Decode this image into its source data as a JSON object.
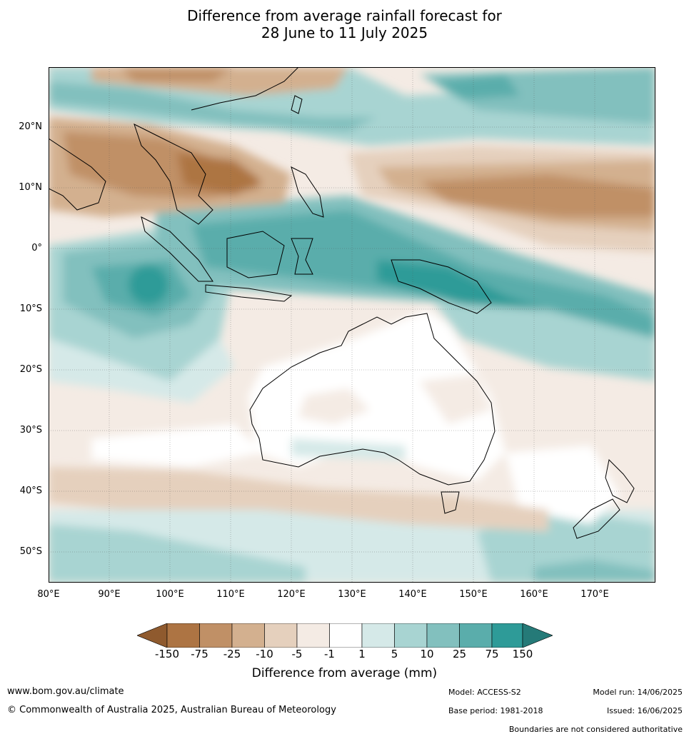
{
  "title": {
    "line1": "Difference from average rainfall forecast for",
    "line2": "28 June to 11 July 2025"
  },
  "map": {
    "lat_labels": [
      "20°N",
      "10°N",
      "0°",
      "10°S",
      "20°S",
      "30°S",
      "40°S",
      "50°S"
    ],
    "lon_labels": [
      "80°E",
      "90°E",
      "100°E",
      "110°E",
      "120°E",
      "130°E",
      "140°E",
      "150°E",
      "160°E",
      "170°E"
    ],
    "colors": {
      "dry_150": "#ad7443",
      "dry_75": "#c09066",
      "dry_25": "#d3b08f",
      "dry_10": "#e5d0bd",
      "dry_5": "#f4ebe4",
      "neutral": "#ffffff",
      "wet_5": "#d5e9e8",
      "wet_10": "#a8d4d2",
      "wet_25": "#82c0be",
      "wet_75": "#5aadab",
      "wet_150": "#2e9b98",
      "land_outline": "#000000",
      "border": "#808080"
    }
  },
  "colorbar": {
    "ticks": [
      "-150",
      "-75",
      "-25",
      "-10",
      "-5",
      "-1",
      "1",
      "5",
      "10",
      "25",
      "75",
      "150"
    ],
    "label": "Difference from average (mm)",
    "colors": [
      "#8f5a2e",
      "#ad7443",
      "#c09066",
      "#d3b08f",
      "#e5d0bd",
      "#f4ebe4",
      "#ffffff",
      "#d5e9e8",
      "#a8d4d2",
      "#82c0be",
      "#5aadab",
      "#2e9b98",
      "#257a78"
    ]
  },
  "footer": {
    "website": "www.bom.gov.au/climate",
    "copyright": "© Commonwealth of Australia 2025, Australian Bureau of Meteorology",
    "model": "Model: ACCESS-S2",
    "base_period": "Base period: 1981-2018",
    "model_run": "Model run: 14/06/2025",
    "issued": "Issued: 16/06/2025",
    "disclaimer": "Boundaries are not considered authoritative"
  }
}
